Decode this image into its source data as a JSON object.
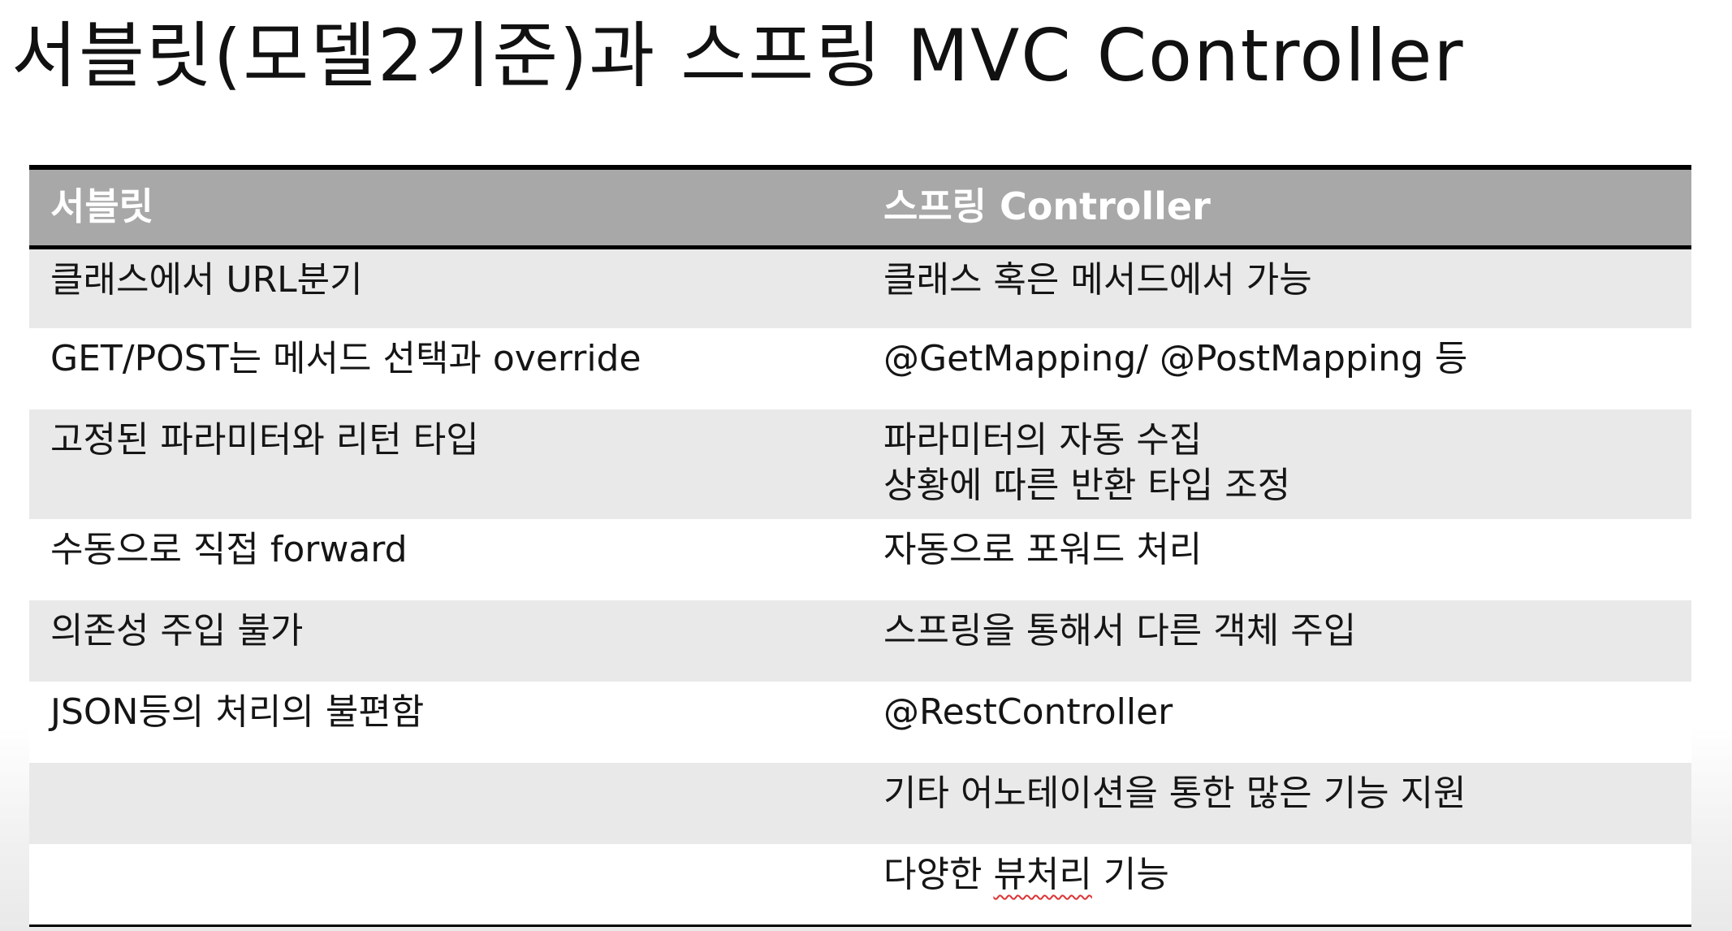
{
  "slide": {
    "title": "서블릿(모델2기준)과 스프링 MVC Controller"
  },
  "table": {
    "headers": [
      "서블릿",
      "스프링 Controller"
    ],
    "rows": [
      {
        "servlet": "클래스에서 URL분기",
        "spring": [
          "클래스 혹은 메서드에서 가능"
        ]
      },
      {
        "servlet": "GET/POST는 메서드 선택과 override",
        "spring": [
          "@GetMapping/ @PostMapping 등"
        ]
      },
      {
        "servlet": "고정된 파라미터와 리턴 타입",
        "spring": [
          "파라미터의 자동 수집",
          "상황에 따른 반환 타입 조정"
        ]
      },
      {
        "servlet": "수동으로 직접 forward",
        "spring": [
          "자동으로 포워드 처리"
        ]
      },
      {
        "servlet": "의존성 주입 불가",
        "spring": [
          "스프링을 통해서 다른 객체 주입"
        ]
      },
      {
        "servlet": "JSON등의 처리의 불편함",
        "spring": [
          "@RestController"
        ]
      },
      {
        "servlet": "",
        "spring": [
          "기타 어노테이션을 통한 많은 기능 지원"
        ]
      },
      {
        "servlet": "",
        "spring_before": "다양한 ",
        "spring_flagged": "뷰처리",
        "spring_after": " 기능"
      }
    ]
  },
  "colors": {
    "header_bg": "#a8a8a8",
    "header_text": "#ffffff",
    "row_shaded": "#e9e9e9",
    "row_plain": "#ffffff",
    "rule": "#000000",
    "spellcheck_underline": "#d33333"
  }
}
